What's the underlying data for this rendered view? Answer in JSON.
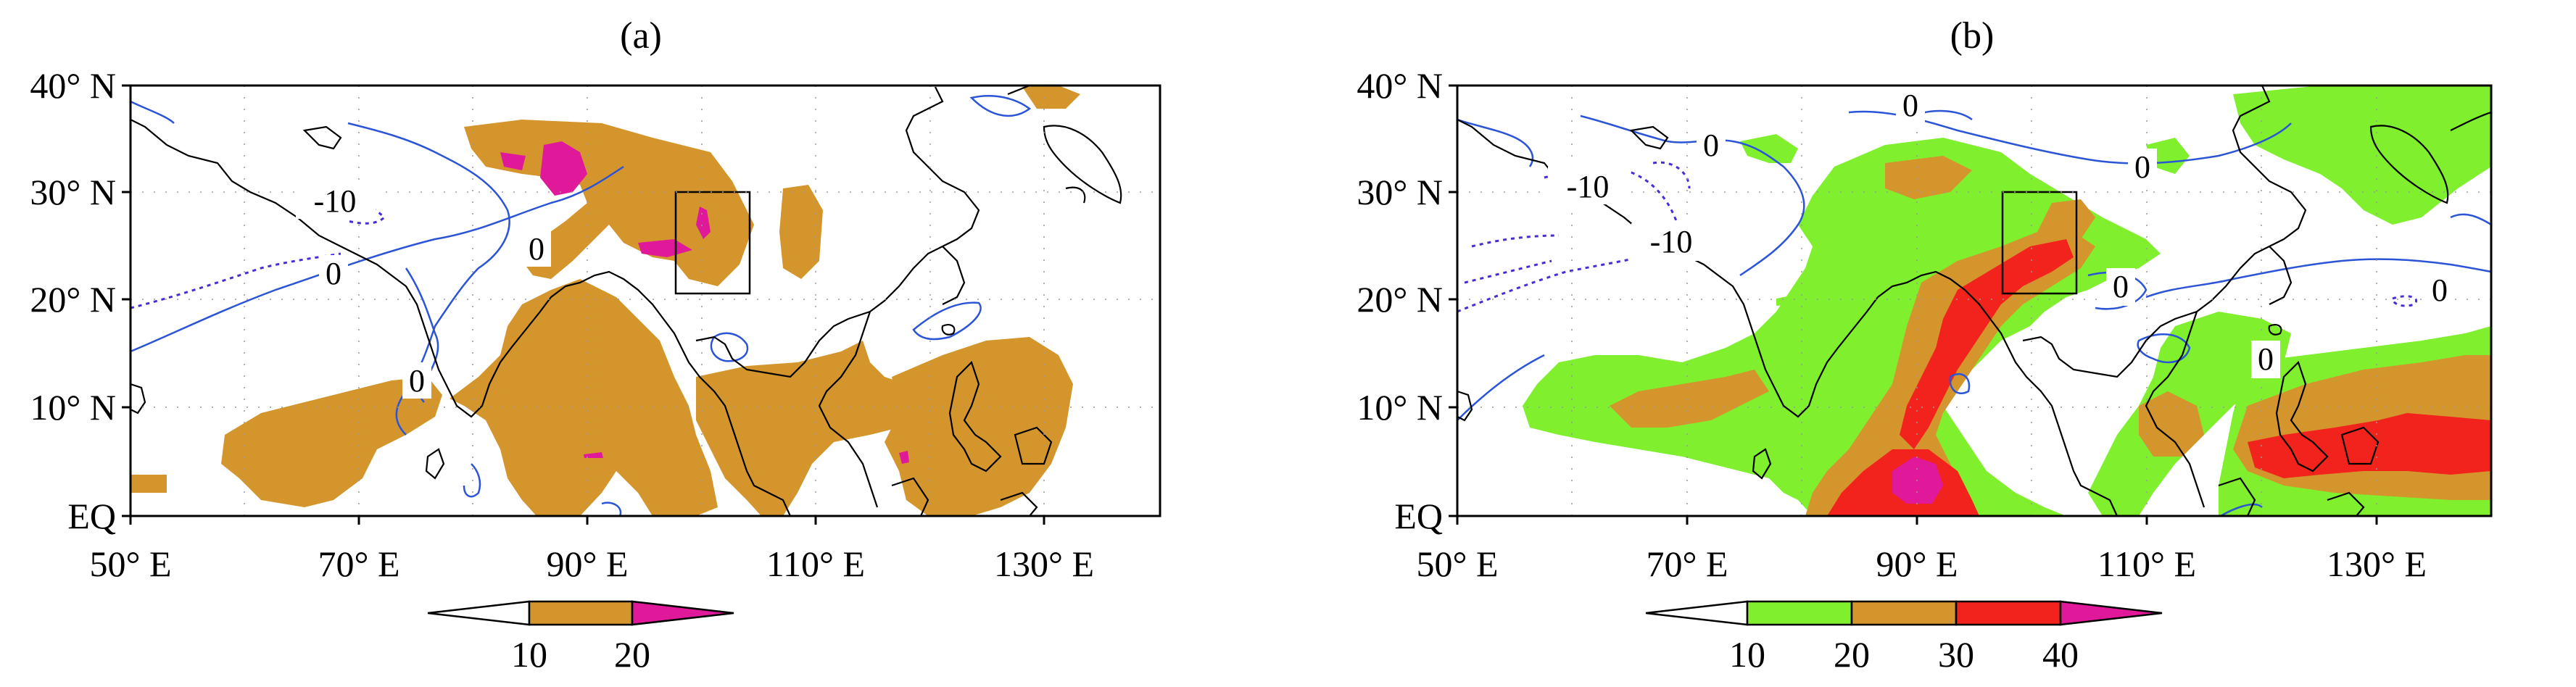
{
  "panels": [
    {
      "id": "a",
      "label": "(a)",
      "x_ticks": [
        "50° E",
        "70° E",
        "90° E",
        "110° E",
        "130° E"
      ],
      "y_ticks": [
        "40° N",
        "30° N",
        "20° N",
        "10° N",
        "EQ"
      ],
      "contour_labels": [
        "-10",
        "0",
        "0",
        "0"
      ],
      "colorbar": {
        "labels": [
          "10",
          "20"
        ],
        "colors": [
          "#ffffff",
          "#d4962c",
          "#e0199a"
        ]
      }
    },
    {
      "id": "b",
      "label": "(b)",
      "x_ticks": [
        "50° E",
        "70° E",
        "90° E",
        "110° E",
        "130° E"
      ],
      "y_ticks": [
        "40° N",
        "30° N",
        "20° N",
        "10° N",
        "EQ"
      ],
      "contour_labels": [
        "0",
        "0",
        "0",
        "-10",
        "-10",
        "0",
        "0",
        "0"
      ],
      "colorbar": {
        "labels": [
          "10",
          "20",
          "30",
          "40"
        ],
        "colors": [
          "#ffffff",
          "#7fef2e",
          "#d4962c",
          "#f2231c",
          "#e0199a"
        ]
      }
    }
  ],
  "colors": {
    "orange_shade": "#d4962c",
    "magenta_shade": "#e0199a",
    "green_shade": "#7fef2e",
    "red_shade": "#f2231c",
    "contour_blue": "#2b54d6",
    "contour_dashed": "#4b2bd6",
    "coast": "#000000"
  }
}
